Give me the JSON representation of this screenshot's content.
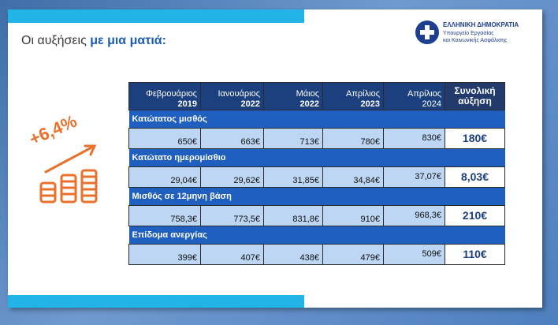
{
  "title": {
    "prefix": "Οι αυξήσεις ",
    "highlight": "με μια ματιά:"
  },
  "logo": {
    "emblem_icon": "greek-coat-of-arms-icon",
    "name": "ΕΛΛΗΝΙΚΗ ΔΗΜΟΚΡΑΤΙΑ",
    "ministry_line1": "Υπουργείο Εργασίας",
    "ministry_line2": "και Κοινωνικής Ασφάλισης"
  },
  "badge": {
    "percent": "+6,4%",
    "icon": "coins-growth-arrow-icon"
  },
  "colors": {
    "accent_cyan": "#22b4e6",
    "header_navy": "#1c3f7d",
    "category_blue": "#1f5fc0",
    "value_light_blue": "#bcd6f3",
    "orange": "#e8722c"
  },
  "table": {
    "headers": [
      {
        "month": "Φεβρουάριος",
        "year": "2019"
      },
      {
        "month": "Ιανουάριος",
        "year": "2022"
      },
      {
        "month": "Μάιος",
        "year": "2022"
      },
      {
        "month": "Απρίλιος",
        "year": "2023"
      },
      {
        "month": "Απρίλιος",
        "year": "2024"
      }
    ],
    "total_header": {
      "line1": "Συνολική",
      "line2": "αύξηση"
    },
    "rows": [
      {
        "category": "Κατώτατος μισθός",
        "values": [
          "650€",
          "663€",
          "713€",
          "780€",
          "830€"
        ],
        "total": "180€"
      },
      {
        "category": "Κατώτατο ημερομίσθιο",
        "values": [
          "29,04€",
          "29,62€",
          "31,85€",
          "34,84€",
          "37,07€"
        ],
        "total": "8,03€"
      },
      {
        "category": "Μισθός σε 12μηνη βάση",
        "values": [
          "758,3€",
          "773,5€",
          "831,8€",
          "910€",
          "968,3€"
        ],
        "total": "210€"
      },
      {
        "category": "Επίδομα ανεργίας",
        "values": [
          "399€",
          "407€",
          "438€",
          "479€",
          "509€"
        ],
        "total": "110€"
      }
    ]
  }
}
